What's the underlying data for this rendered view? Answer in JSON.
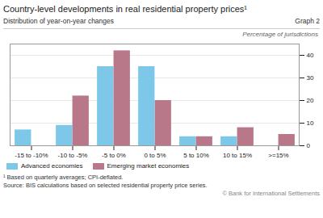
{
  "chart_data": {
    "type": "bar",
    "title": "Country-level developments in real residential property prices¹",
    "subtitle": "Distribution of year-on-year changes",
    "ylabel": "Percentage of jurisdictions",
    "annotations": [
      "Graph 2",
      "¹  Based on quarterly averages; CPI-deflated.",
      "Source: BIS calculations based on selected residential property price series.",
      "© Bank for International Settlements"
    ],
    "categories": [
      "-15 to -10%",
      "-10 to -5%",
      "-5 to 0%",
      "0 to 5%",
      "5 to 10%",
      "10 to 15%",
      ">=15%"
    ],
    "series": [
      {
        "name": "Advanced economies",
        "color": "#7dc8e8",
        "values": [
          7,
          9,
          35,
          35,
          4,
          4,
          0
        ]
      },
      {
        "name": "Emerging market economies",
        "color": "#b8788a",
        "values": [
          0,
          22,
          42,
          20,
          4,
          8,
          5
        ]
      }
    ],
    "ylim": [
      0,
      45
    ],
    "yticks": [
      0,
      10,
      20,
      30,
      40
    ],
    "grid": true,
    "legend": "bottom"
  }
}
